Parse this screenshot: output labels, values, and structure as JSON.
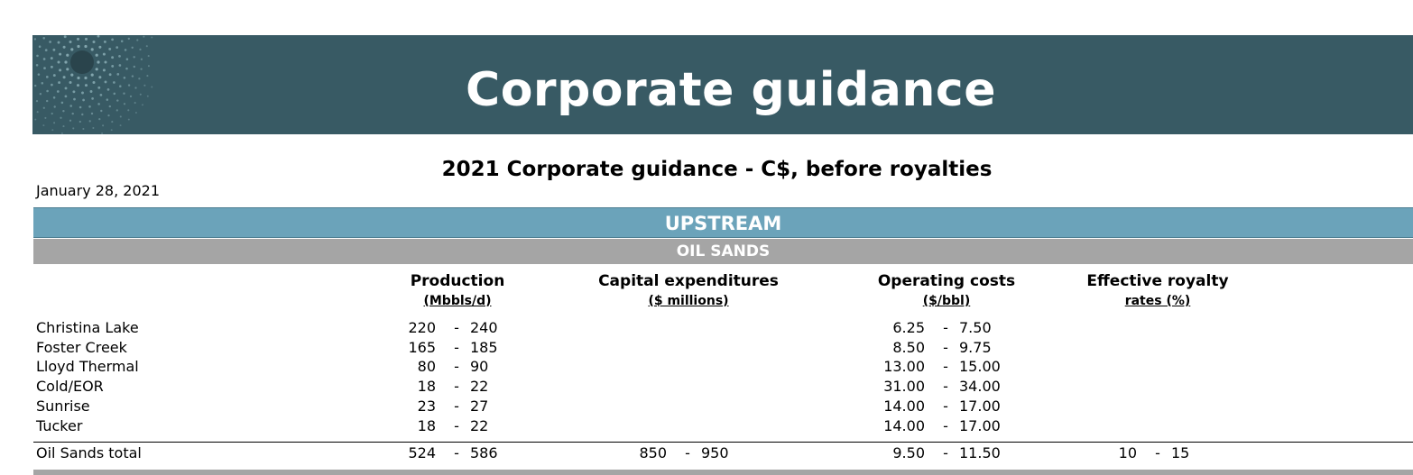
{
  "banner": {
    "title": "Corporate guidance"
  },
  "subtitle": "2021 Corporate guidance - C$, before royalties",
  "date": "January 28, 2021",
  "sections": {
    "upstream": "UPSTREAM",
    "oil_sands": "OIL SANDS"
  },
  "columns": {
    "production": {
      "title": "Production",
      "unit": "(Mbbls/d)"
    },
    "capex": {
      "title": "Capital expenditures",
      "unit": "($ millions)"
    },
    "opcost": {
      "title": "Operating costs",
      "unit": "($/bbl)"
    },
    "royalty": {
      "title": "Effective royalty",
      "unit": "rates (%)"
    }
  },
  "rows": [
    {
      "name": "Christina Lake",
      "production": [
        "220",
        "-",
        "240"
      ],
      "opcost": [
        "6.25",
        "-",
        "7.50"
      ]
    },
    {
      "name": "Foster Creek",
      "production": [
        "165",
        "-",
        "185"
      ],
      "opcost": [
        "8.50",
        "-",
        "9.75"
      ]
    },
    {
      "name": "Lloyd Thermal",
      "production": [
        "80",
        "-",
        "90"
      ],
      "opcost": [
        "13.00",
        "-",
        "15.00"
      ]
    },
    {
      "name": "Cold/EOR",
      "production": [
        "18",
        "-",
        "22"
      ],
      "opcost": [
        "31.00",
        "-",
        "34.00"
      ]
    },
    {
      "name": "Sunrise",
      "production": [
        "23",
        "-",
        "27"
      ],
      "opcost": [
        "14.00",
        "-",
        "17.00"
      ]
    },
    {
      "name": "Tucker",
      "production": [
        "18",
        "-",
        "22"
      ],
      "opcost": [
        "14.00",
        "-",
        "17.00"
      ]
    }
  ],
  "total": {
    "name": "Oil Sands total",
    "production": [
      "524",
      "-",
      "586"
    ],
    "capex": [
      "850",
      "-",
      "950"
    ],
    "opcost": [
      "9.50",
      "-",
      "11.50"
    ],
    "royalty": [
      "10",
      "-",
      "15"
    ]
  },
  "colors": {
    "banner": "#385a64",
    "upstream_bar": "#6ba3ba",
    "oil_sands_bar": "#a5a5a5"
  }
}
